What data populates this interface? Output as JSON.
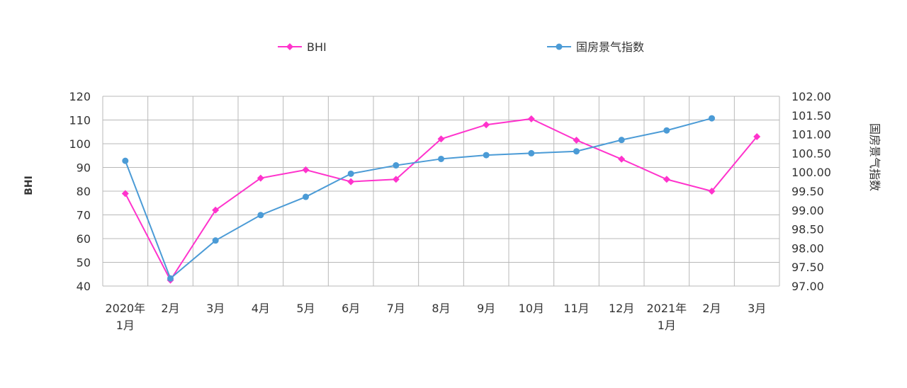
{
  "chart_data": {
    "type": "line",
    "categories": [
      [
        "2020年",
        "1月"
      ],
      [
        "2月"
      ],
      [
        "3月"
      ],
      [
        "4月"
      ],
      [
        "5月"
      ],
      [
        "6月"
      ],
      [
        "7月"
      ],
      [
        "8月"
      ],
      [
        "9月"
      ],
      [
        "10月"
      ],
      [
        "11月"
      ],
      [
        "12月"
      ],
      [
        "2021年",
        "1月"
      ],
      [
        "2月"
      ],
      [
        "3月"
      ]
    ],
    "series": [
      {
        "name": "BHI",
        "axis": "left",
        "color": "#FF33CC",
        "marker": "diamond",
        "values": [
          79,
          42.5,
          72,
          85.5,
          89,
          84,
          85,
          102,
          108,
          110.5,
          101.5,
          93.5,
          85,
          80,
          103
        ]
      },
      {
        "name": "国房景气指数",
        "axis": "right",
        "color": "#4B9BD6",
        "marker": "circle",
        "values": [
          100.3,
          97.2,
          98.2,
          98.87,
          99.35,
          99.96,
          100.18,
          100.35,
          100.45,
          100.5,
          100.55,
          100.85,
          101.1,
          101.42,
          null
        ]
      }
    ],
    "ylabel": "BHI",
    "ylim": [
      40,
      120
    ],
    "yticks": [
      "120",
      "110",
      "100",
      "90",
      "80",
      "70",
      "60",
      "50",
      "40"
    ],
    "y2label": "国房景气指数",
    "y2lim": [
      97,
      102
    ],
    "y2ticks": [
      "102.00",
      "101.50",
      "101.00",
      "100.50",
      "100.00",
      "99.50",
      "99.00",
      "98.50",
      "98.00",
      "97.50",
      "97.00"
    ],
    "grid": true,
    "legend_position": "top"
  }
}
